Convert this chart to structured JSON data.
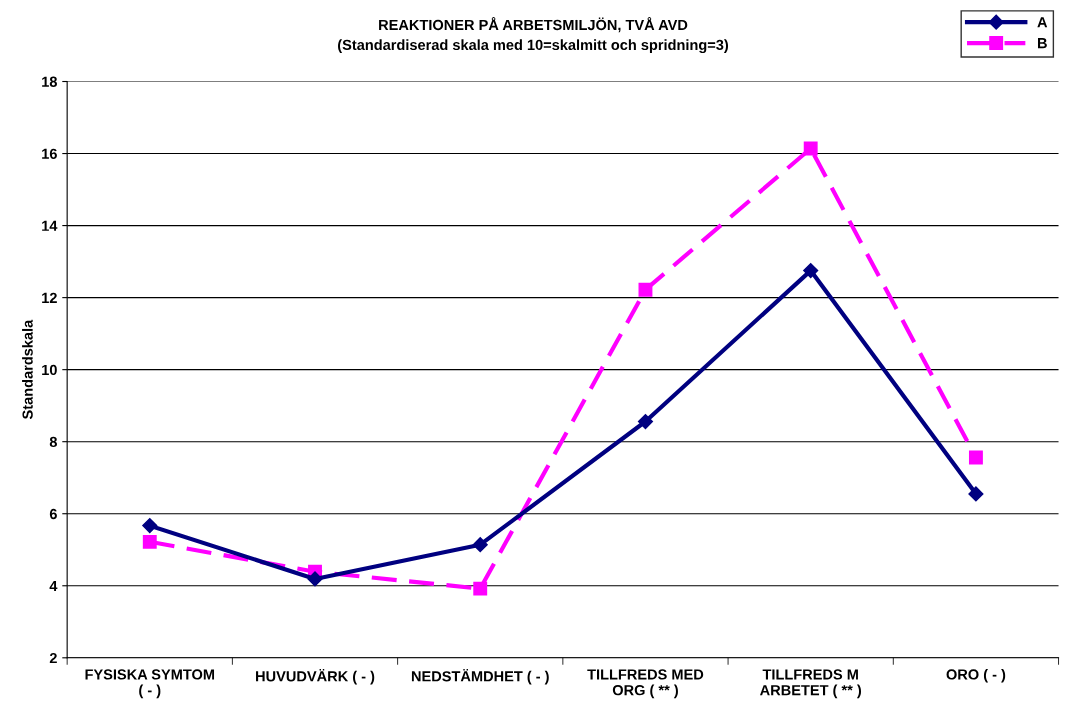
{
  "chart_data": {
    "type": "line",
    "title": "REAKTIONER PÅ ARBETSMILJÖN, TVÅ AVD",
    "subtitle": "(Standardiserad skala med 10=skalmitt och spridning=3)",
    "ylabel": "Standardskala",
    "categories": [
      "FYSISKA SYMTOM\n( - )",
      "HUVUDVÄRK ( - )",
      "NEDSTÄMDHET ( - )",
      "TILLFREDS MED\nORG ( ** )",
      "TILLFREDS M\nARBETET ( ** )",
      "ORO ( - )"
    ],
    "series": [
      {
        "name": "A",
        "color": "#000080",
        "values": [
          5.67,
          4.19,
          5.14,
          8.56,
          12.75,
          6.55
        ],
        "marker": "diamond",
        "line_style": "solid"
      },
      {
        "name": "B",
        "color": "#ff00ff",
        "values": [
          5.22,
          4.39,
          3.92,
          12.22,
          16.14,
          7.56
        ],
        "marker": "square",
        "line_style": "dashed"
      }
    ],
    "ylim": [
      2,
      18
    ],
    "yticks": [
      2,
      4,
      6,
      8,
      10,
      12,
      14,
      16,
      18
    ],
    "grid": "y",
    "legend": "top right"
  }
}
